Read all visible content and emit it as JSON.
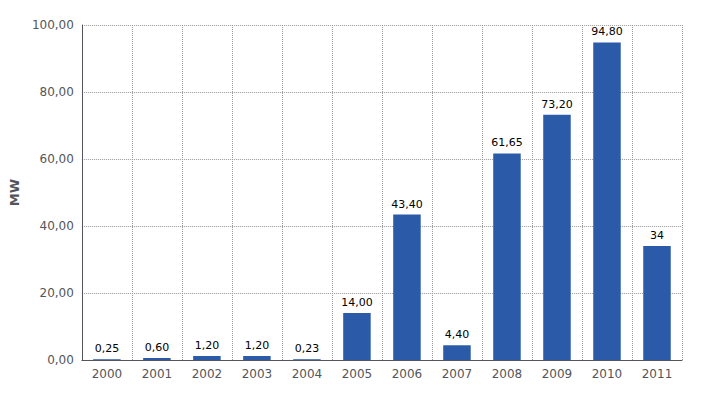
{
  "chart_data": {
    "type": "bar",
    "categories": [
      "2000",
      "2001",
      "2002",
      "2003",
      "2004",
      "2005",
      "2006",
      "2007",
      "2008",
      "2009",
      "2010",
      "2011"
    ],
    "values": [
      0.25,
      0.6,
      1.2,
      1.2,
      0.23,
      14.0,
      43.4,
      4.4,
      61.65,
      73.2,
      94.8,
      34.0
    ],
    "value_labels": [
      "0,25",
      "0,60",
      "1,20",
      "1,20",
      "0,23",
      "14,00",
      "43,40",
      "4,40",
      "61,65",
      "73,20",
      "94,80",
      "34"
    ],
    "data_labels": true,
    "color": "#2B5BA8",
    "y_label": "MW",
    "ylim": [
      0,
      100
    ],
    "yticks": [
      {
        "value": 0,
        "label": "0,00"
      },
      {
        "value": 20,
        "label": "20,00"
      },
      {
        "value": 40,
        "label": "40,00"
      },
      {
        "value": 60,
        "label": "60,00"
      },
      {
        "value": 80,
        "label": "80,00"
      },
      {
        "value": 100,
        "label": "100,00"
      }
    ],
    "grid": true
  }
}
